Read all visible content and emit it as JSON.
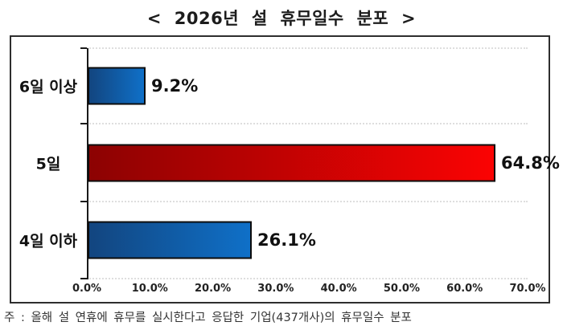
{
  "title": "< 2026년 설 휴무일수 분포 >",
  "footnote": "주 : 올해 설 연휴에 휴무를 실시한다고 응답한 기업(437개사)의 휴무일수 분포",
  "colors": {
    "blue_bar_start": "#12457f",
    "blue_bar_end": "#0f70c8",
    "red_bar_start": "#8c0202",
    "red_bar_end": "#fb0303",
    "bar_border": "#0d0d0d",
    "axis": "#1a1a1a",
    "grid": "#dedede",
    "frame_border": "#2e2e2e"
  },
  "chart_data": {
    "type": "bar",
    "orientation": "horizontal",
    "title": "< 2026년 설 휴무일수 분포 >",
    "categories": [
      "6일 이상",
      "5일",
      "4일 이하"
    ],
    "values": [
      9.2,
      64.8,
      26.1
    ],
    "value_labels": [
      "9.2%",
      "64.8%",
      "26.1%"
    ],
    "bar_colors": [
      {
        "start": "#12457f",
        "end": "#0f70c8"
      },
      {
        "start": "#8c0202",
        "end": "#fb0303"
      },
      {
        "start": "#12457f",
        "end": "#0f70c8"
      }
    ],
    "xlim": [
      0,
      70
    ],
    "xticks": [
      "0.0%",
      "10.0%",
      "20.0%",
      "30.0%",
      "40.0%",
      "50.0%",
      "60.0%",
      "70.0%"
    ],
    "xtick_values": [
      0,
      10,
      20,
      30,
      40,
      50,
      60,
      70
    ],
    "xlabel": "",
    "ylabel": "",
    "grid": "dotted horizontal lines at category boundaries",
    "legend": "none"
  }
}
